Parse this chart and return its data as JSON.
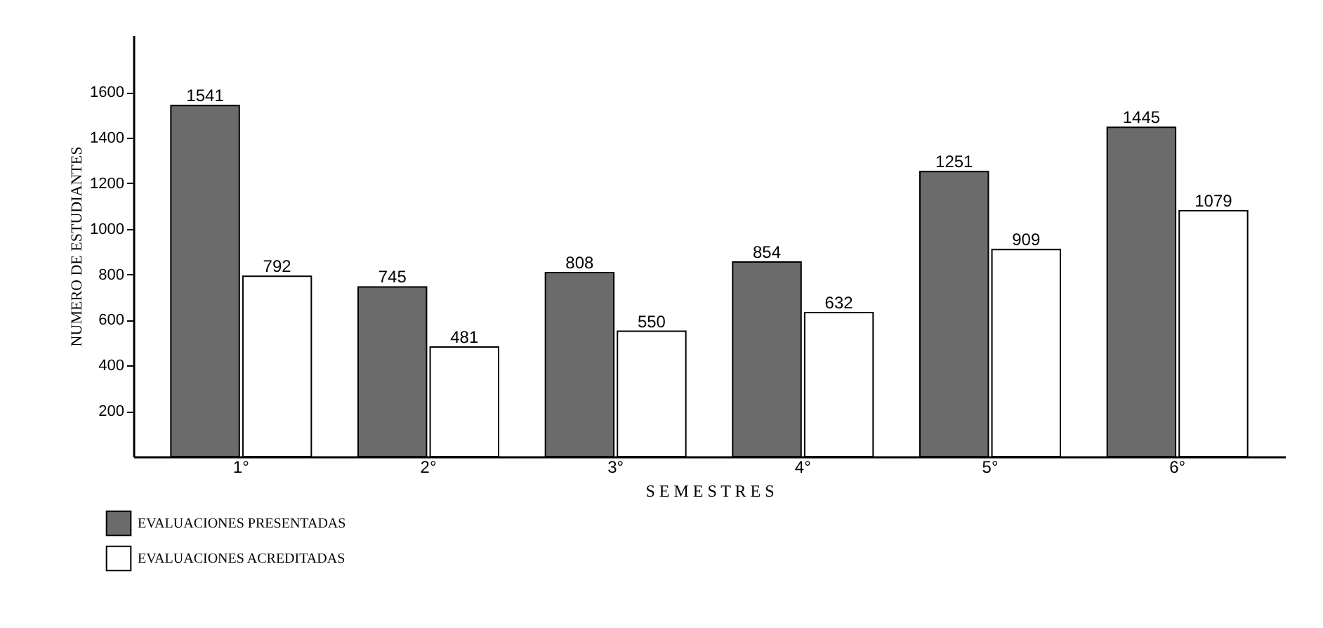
{
  "chart_data": {
    "type": "bar",
    "xlabel": "S E M E S T R E S",
    "ylabel": "NUMERO DE ESTUDIANTES",
    "categories": [
      "1°",
      "2°",
      "3°",
      "4°",
      "5°",
      "6°"
    ],
    "series": [
      {
        "name": "EVALUACIONES PRESENTADAS",
        "color": "#6b6b6b",
        "values": [
          1541,
          745,
          808,
          854,
          1251,
          1445
        ]
      },
      {
        "name": "EVALUACIONES ACREDITADAS",
        "color": "#ffffff",
        "values": [
          792,
          481,
          550,
          632,
          909,
          1079
        ]
      }
    ],
    "ylim": [
      0,
      1850
    ],
    "yticks": [
      200,
      400,
      600,
      800,
      1000,
      1200,
      1400,
      1600
    ],
    "data_labels": true,
    "legend": "bottom left"
  }
}
